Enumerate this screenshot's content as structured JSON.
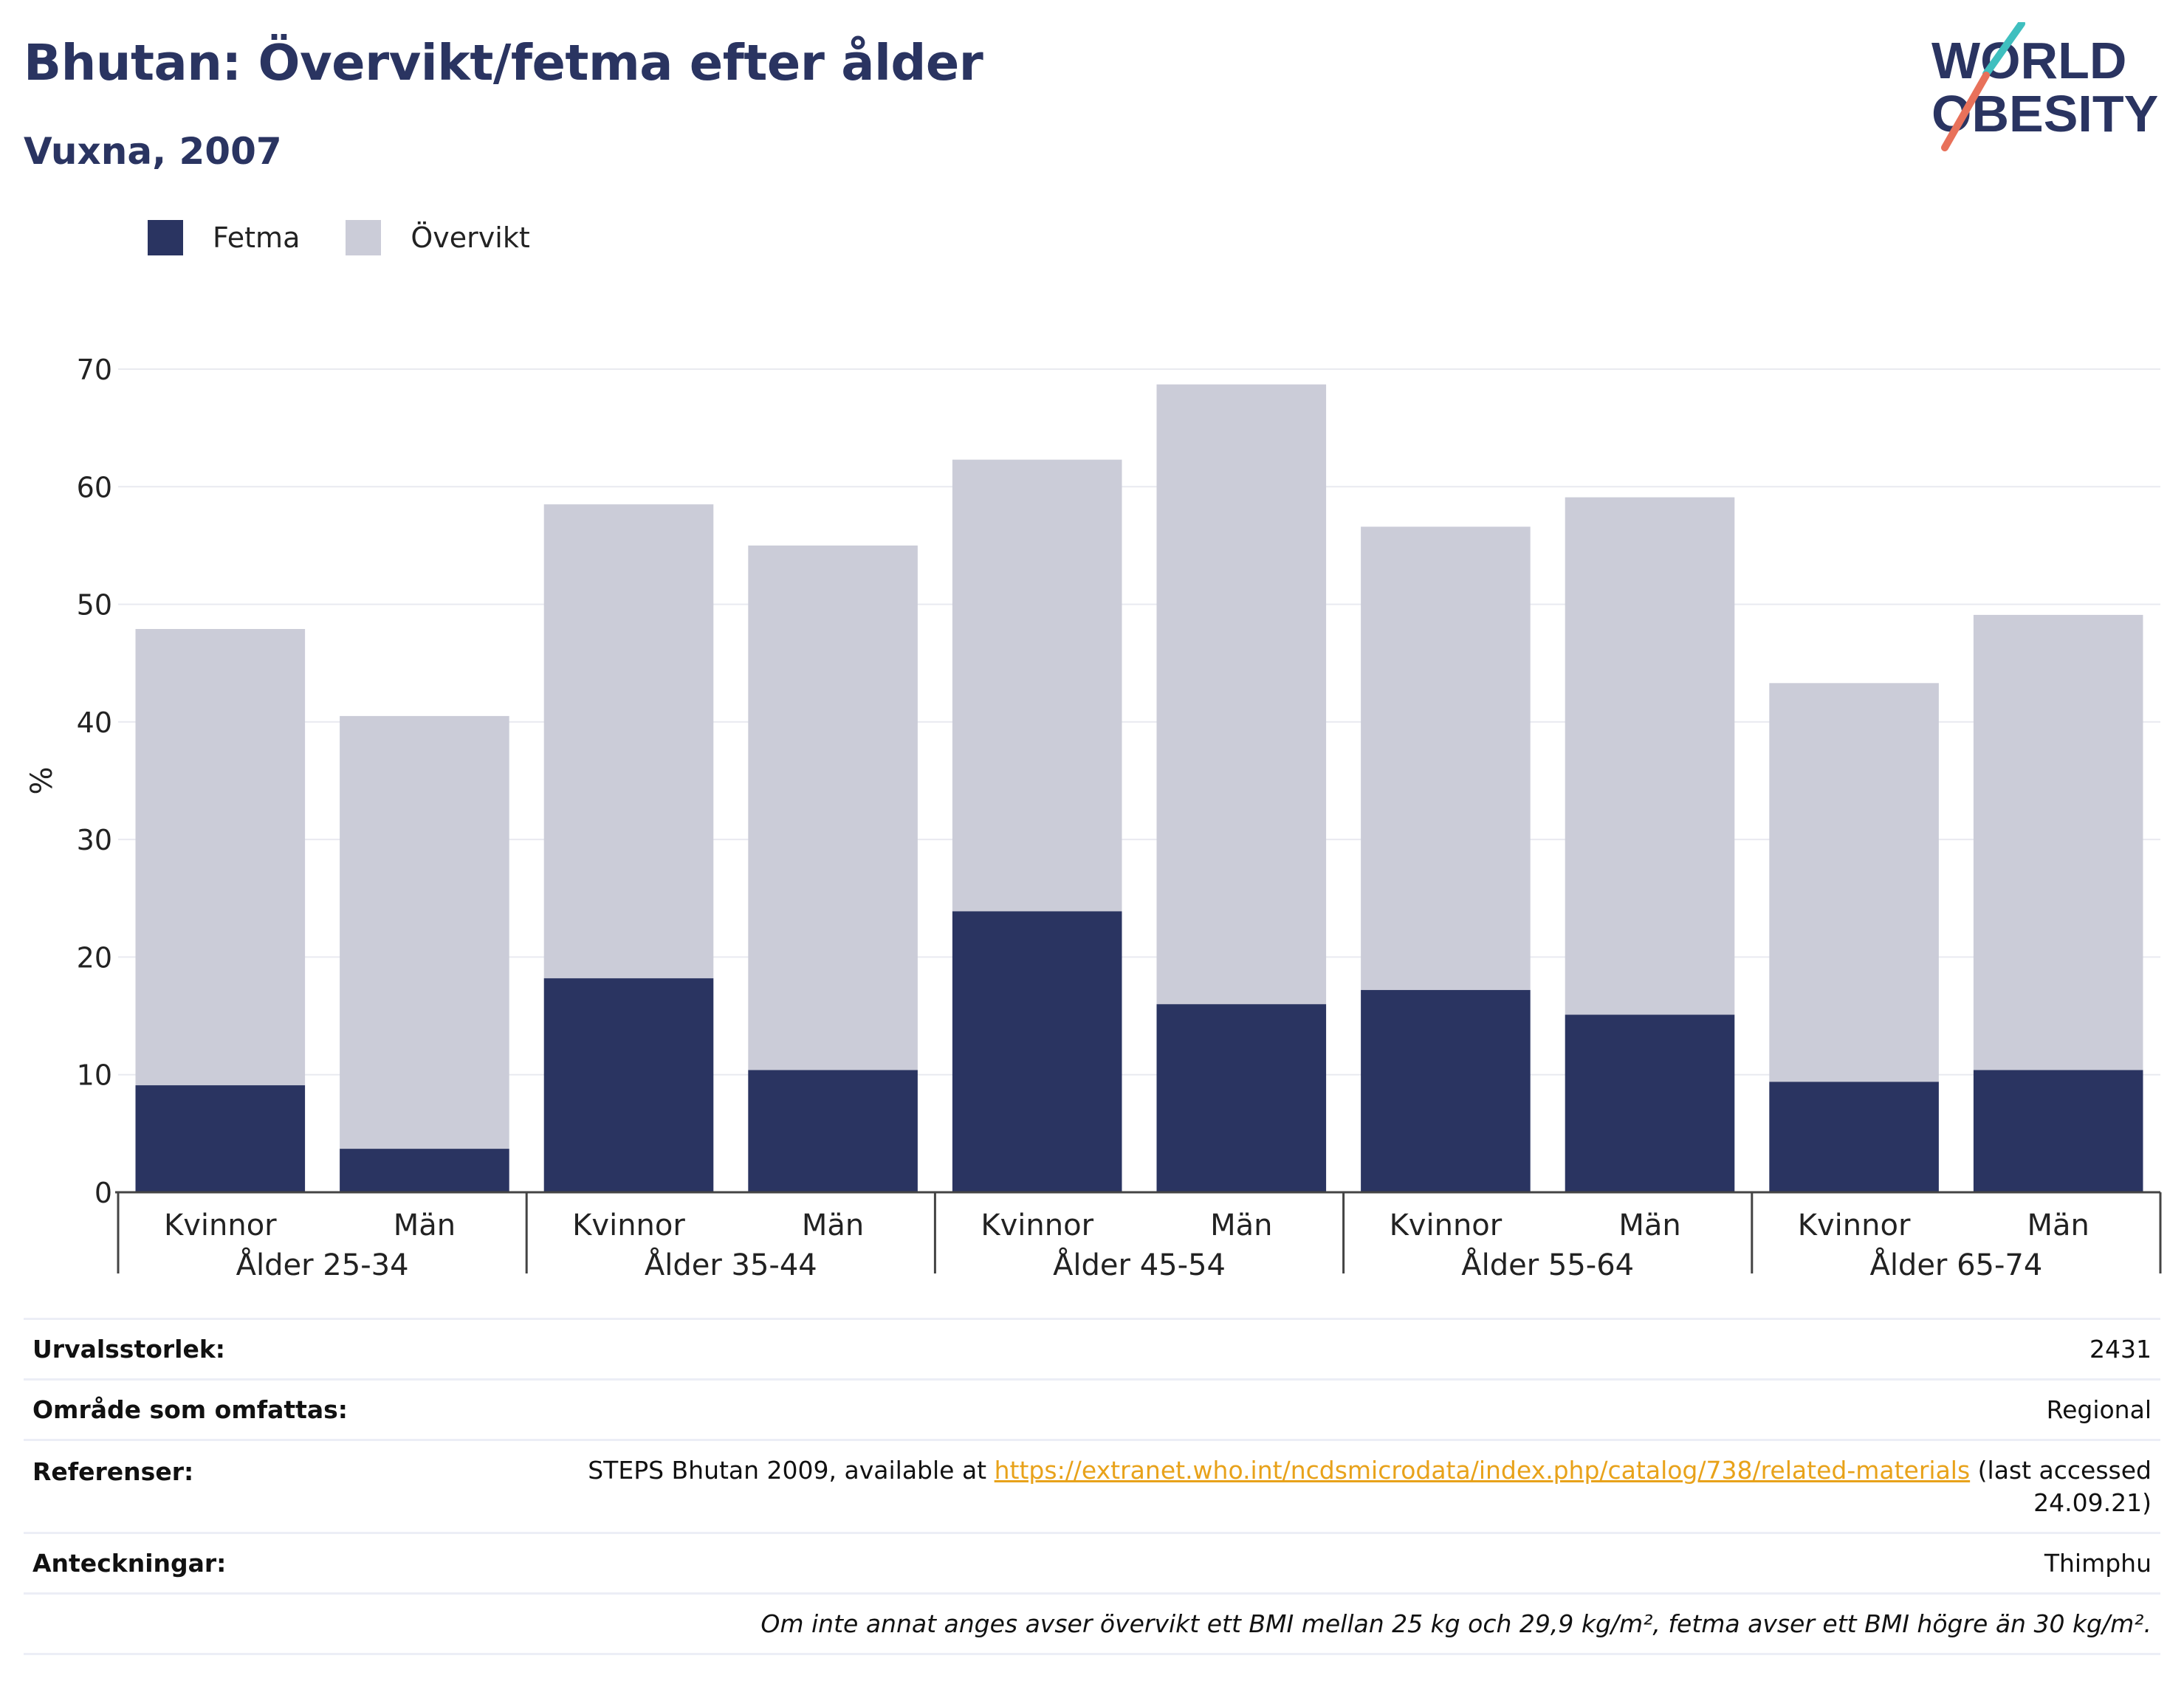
{
  "title": "Bhutan: Övervikt/fetma efter ålder",
  "subtitle": "Vuxna, 2007",
  "logo": {
    "line1": "WORLD",
    "line2": "OBESITY"
  },
  "colors": {
    "obesity": "#2a3461",
    "overweight": "#cbccd8",
    "title": "#2a3461",
    "logo_teal": "#3fbfbf",
    "logo_coral": "#e8715a",
    "link": "#e8a21a"
  },
  "legend": [
    {
      "label": "Fetma",
      "color": "#2a3461"
    },
    {
      "label": "Övervikt",
      "color": "#cbccd8"
    }
  ],
  "chart_data": {
    "type": "bar",
    "stacked": true,
    "title": "",
    "xlabel": "",
    "ylabel": "%",
    "ylim": [
      0,
      70
    ],
    "yticks": [
      0,
      10,
      20,
      30,
      40,
      50,
      60,
      70
    ],
    "grid": true,
    "legend_position": "top-left",
    "groups": [
      "Ålder 25-34",
      "Ålder 35-44",
      "Ålder 45-54",
      "Ålder 55-64",
      "Ålder 65-74"
    ],
    "subcategories": [
      "Kvinnor",
      "Män"
    ],
    "series": [
      {
        "name": "Fetma",
        "color": "#2a3461",
        "values": [
          9.1,
          3.7,
          18.2,
          10.4,
          23.9,
          16.0,
          17.2,
          15.1,
          9.4,
          10.4
        ]
      },
      {
        "name": "Övervikt",
        "color": "#cbccd8",
        "values": [
          38.8,
          36.8,
          40.3,
          44.6,
          38.4,
          52.7,
          39.4,
          44.0,
          33.9,
          38.7
        ]
      }
    ]
  },
  "info": {
    "sample_label": "Urvalsstorlek:",
    "sample_value": "2431",
    "area_label": "Område som omfattas:",
    "area_value": "Regional",
    "refs_label": "Referenser:",
    "refs_prefix": "STEPS Bhutan 2009, available at",
    "refs_link": "https://extranet.who.int/ncdsmicrodata/index.php/catalog/738/related-materials",
    "refs_suffix": "(last accessed",
    "refs_date": "24.09.21)",
    "notes_label": "Anteckningar:",
    "notes_value": "Thimphu",
    "footnote": "Om inte annat anges avser övervikt ett BMI mellan 25 kg och 29,9 kg/m², fetma avser ett BMI högre än 30 kg/m²."
  }
}
